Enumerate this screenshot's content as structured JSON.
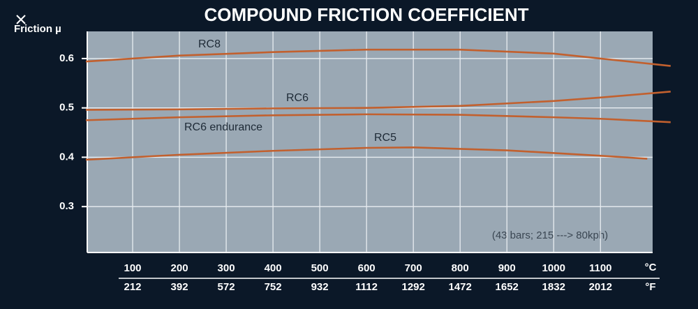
{
  "chart_data": {
    "type": "line",
    "title": "COMPOUND FRICTION COEFFICIENT",
    "y_label": "Friction µ",
    "x_unit": "°C",
    "x2_unit": "°F",
    "annotation": "(43 bars; 215 ---> 80kph)",
    "xlim": [
      0,
      1210
    ],
    "xticks": [
      100,
      200,
      300,
      400,
      500,
      600,
      700,
      800,
      900,
      1000,
      1100
    ],
    "x2lim": [
      32,
      2210
    ],
    "x2ticks": [
      212,
      392,
      572,
      752,
      932,
      1112,
      1292,
      1472,
      1652,
      1832,
      2012
    ],
    "ylim": [
      0.207,
      0.655
    ],
    "yticks": [
      0.3,
      0.4,
      0.5,
      0.6
    ],
    "grid": true,
    "series": [
      {
        "name": "RC8",
        "color": "#c2602e",
        "x": [
          0,
          200,
          400,
          600,
          800,
          1000,
          1100,
          1250
        ],
        "values": [
          0.594,
          0.606,
          0.613,
          0.618,
          0.618,
          0.61,
          0.6,
          0.585
        ]
      },
      {
        "name": "RC6",
        "color": "#c2602e",
        "x": [
          0,
          200,
          400,
          600,
          800,
          1000,
          1100,
          1250
        ],
        "values": [
          0.496,
          0.497,
          0.499,
          0.5,
          0.504,
          0.514,
          0.521,
          0.533
        ]
      },
      {
        "name": "RC6 endurance",
        "color": "#c2602e",
        "x": [
          0,
          200,
          400,
          600,
          800,
          1000,
          1100,
          1250
        ],
        "values": [
          0.475,
          0.481,
          0.485,
          0.487,
          0.486,
          0.481,
          0.478,
          0.471
        ]
      },
      {
        "name": "RC5",
        "color": "#c2602e",
        "x": [
          0,
          200,
          400,
          600,
          700,
          900,
          1100,
          1200
        ],
        "values": [
          0.395,
          0.405,
          0.413,
          0.419,
          0.42,
          0.414,
          0.403,
          0.397
        ]
      }
    ]
  }
}
